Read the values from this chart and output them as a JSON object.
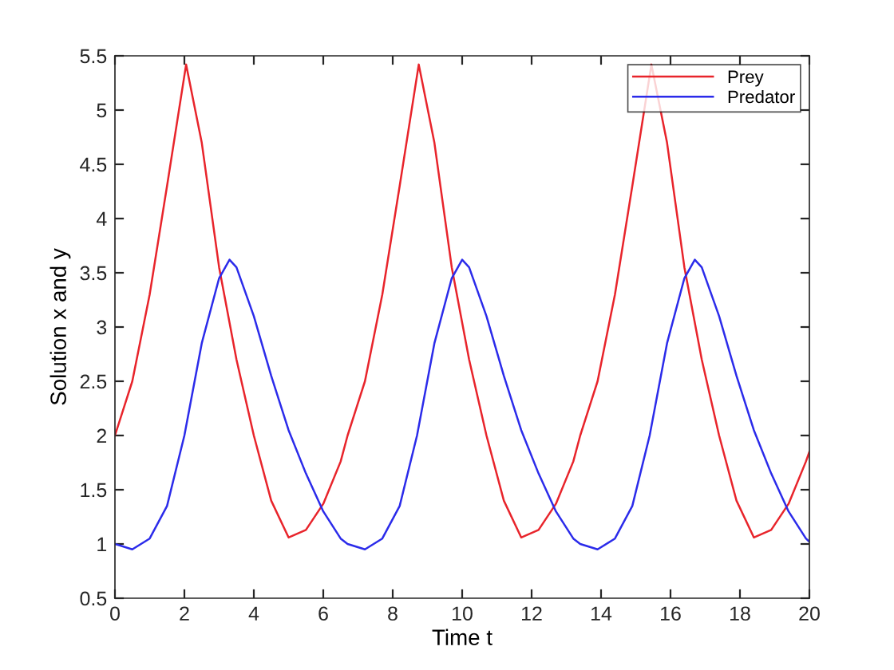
{
  "chart_data": {
    "type": "line",
    "xlabel": "Time t",
    "ylabel": "Solution x and y",
    "xlim": [
      0,
      20
    ],
    "xticks": [
      0,
      2,
      4,
      6,
      8,
      10,
      12,
      14,
      16,
      18,
      20
    ],
    "ylim": [
      0.5,
      5.5
    ],
    "yticks": [
      0.5,
      1,
      1.5,
      2,
      2.5,
      3,
      3.5,
      4,
      4.5,
      5,
      5.5
    ],
    "grid": false,
    "legend": "top right",
    "line_style": "solid",
    "marker": "none",
    "series": [
      {
        "name": "Prey",
        "color": "#e8242b",
        "x": [
          0,
          0.5,
          1,
          1.5,
          2.05,
          2.5,
          3,
          3.5,
          4,
          4.5,
          5,
          5.5,
          6,
          6.5,
          6.7,
          7.2,
          7.7,
          8.2,
          8.75,
          9.2,
          9.7,
          10.2,
          10.7,
          11.2,
          11.7,
          12.2,
          12.7,
          13.2,
          13.4,
          13.9,
          14.4,
          14.9,
          15.45,
          15.9,
          16.4,
          16.9,
          17.4,
          17.9,
          18.4,
          18.9,
          19.4,
          19.9,
          20
        ],
        "values": [
          2.0,
          2.5,
          3.3,
          4.3,
          5.42,
          4.7,
          3.55,
          2.7,
          2.0,
          1.4,
          1.06,
          1.13,
          1.37,
          1.76,
          2.0,
          2.5,
          3.3,
          4.3,
          5.42,
          4.7,
          3.55,
          2.7,
          2.0,
          1.4,
          1.06,
          1.13,
          1.37,
          1.76,
          2.0,
          2.5,
          3.3,
          4.3,
          5.42,
          4.7,
          3.55,
          2.7,
          2.0,
          1.4,
          1.06,
          1.13,
          1.37,
          1.76,
          1.85
        ]
      },
      {
        "name": "Predator",
        "color": "#2b2bea",
        "x": [
          0,
          0.5,
          1,
          1.5,
          2,
          2.5,
          3,
          3.3,
          3.5,
          4,
          4.5,
          5,
          5.5,
          6,
          6.5,
          6.7,
          7.2,
          7.7,
          8.2,
          8.7,
          9.2,
          9.7,
          10,
          10.2,
          10.7,
          11.2,
          11.7,
          12.2,
          12.7,
          13.2,
          13.4,
          13.9,
          14.4,
          14.9,
          15.4,
          15.9,
          16.4,
          16.7,
          16.9,
          17.4,
          17.9,
          18.4,
          18.9,
          19.4,
          19.9,
          20
        ],
        "values": [
          1.0,
          0.95,
          1.05,
          1.35,
          2.0,
          2.85,
          3.45,
          3.62,
          3.55,
          3.1,
          2.55,
          2.05,
          1.65,
          1.3,
          1.05,
          1.0,
          0.95,
          1.05,
          1.35,
          2.0,
          2.85,
          3.45,
          3.62,
          3.55,
          3.1,
          2.55,
          2.05,
          1.65,
          1.3,
          1.05,
          1.0,
          0.95,
          1.05,
          1.35,
          2.0,
          2.85,
          3.45,
          3.62,
          3.55,
          3.1,
          2.55,
          2.05,
          1.65,
          1.3,
          1.05,
          1.02
        ]
      }
    ]
  }
}
